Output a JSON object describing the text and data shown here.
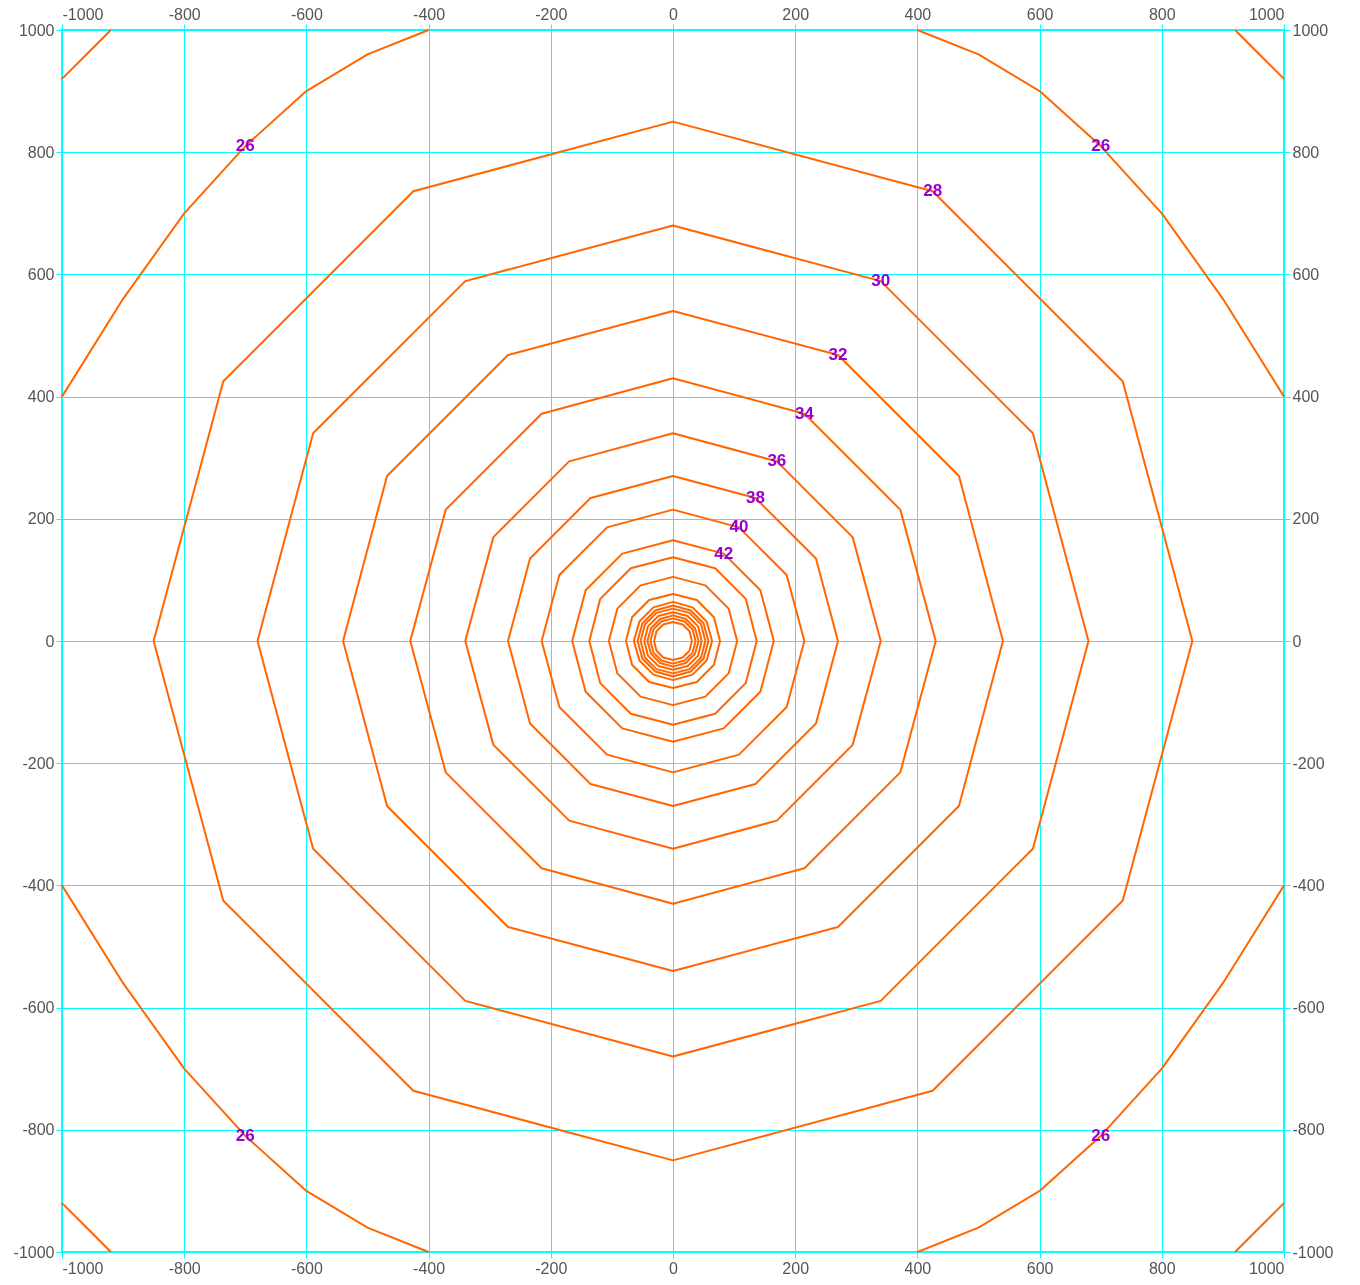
{
  "chart_data": {
    "type": "line",
    "xlim": [
      -1000,
      1000
    ],
    "ylim": [
      -1000,
      1000
    ],
    "x2lim": [
      -1000,
      1000
    ],
    "y2lim": [
      -1000,
      1000
    ],
    "xticks": [
      -1000,
      -800,
      -600,
      -400,
      -200,
      0,
      200,
      400,
      600,
      800,
      1000
    ],
    "yticks": [
      -1000,
      -800,
      -600,
      -400,
      -200,
      0,
      200,
      400,
      600,
      800,
      1000
    ],
    "x2ticks": [
      -1000,
      -800,
      -600,
      -400,
      -200,
      0,
      200,
      400,
      600,
      800,
      1000
    ],
    "y2ticks": [
      -1000,
      -800,
      -600,
      -400,
      -200,
      0,
      200,
      400,
      600,
      800,
      1000
    ],
    "grid": true,
    "marker": "none",
    "line_style": "solid",
    "series": [
      {
        "color": "#ff6600",
        "x": [
          -1000,
          -960,
          -920
        ],
        "values": [
          920,
          960,
          1000
        ]
      },
      {
        "color": "#ff6600",
        "x": [
          920,
          960,
          1000
        ],
        "values": [
          1000,
          960,
          920
        ]
      },
      {
        "color": "#ff6600",
        "x": [
          920,
          960,
          1000
        ],
        "values": [
          -1000,
          -960,
          -920
        ]
      },
      {
        "color": "#ff6600",
        "x": [
          -1000,
          -960,
          -920
        ],
        "values": [
          -920,
          -960,
          -1000
        ]
      },
      {
        "name": "26",
        "color": "#ff6600",
        "x": [
          -1000,
          -900,
          -800,
          -700,
          -600,
          -500,
          -400
        ],
        "values": [
          400,
          560,
          700,
          810,
          900,
          960,
          1000
        ]
      },
      {
        "name": "26",
        "color": "#ff6600",
        "x": [
          400,
          500,
          600,
          700,
          800,
          900,
          1000
        ],
        "values": [
          1000,
          960,
          900,
          810,
          700,
          560,
          400
        ]
      },
      {
        "name": "26",
        "color": "#ff6600",
        "x": [
          400,
          500,
          600,
          700,
          800,
          900,
          1000
        ],
        "values": [
          -1000,
          -960,
          -900,
          -810,
          -700,
          -560,
          -400
        ]
      },
      {
        "name": "26",
        "color": "#ff6600",
        "x": [
          -1000,
          -900,
          -800,
          -700,
          -600,
          -500,
          -400
        ],
        "values": [
          -400,
          -560,
          -700,
          -810,
          -900,
          -960,
          -1000
        ]
      },
      {
        "name": "28",
        "color": "#ff6600",
        "x": [
          850,
          736,
          425,
          0,
          -425,
          -736,
          -850
        ],
        "values": [
          0,
          425,
          736,
          850,
          736,
          425,
          0
        ]
      },
      {
        "color": "#ff6600",
        "x": [
          -850,
          -736,
          -425,
          0,
          425,
          736,
          850
        ],
        "values": [
          0,
          -425,
          -736,
          -850,
          -736,
          -425,
          0
        ]
      },
      {
        "name": "30",
        "color": "#ff6600",
        "x": [
          680,
          589,
          340,
          0,
          -340,
          -589,
          -680
        ],
        "values": [
          0,
          340,
          589,
          680,
          589,
          340,
          0
        ]
      },
      {
        "color": "#ff6600",
        "x": [
          -680,
          -589,
          -340,
          0,
          340,
          589,
          680
        ],
        "values": [
          0,
          -340,
          -589,
          -680,
          -589,
          -340,
          0
        ]
      },
      {
        "name": "32",
        "color": "#ff6600",
        "x": [
          540,
          468,
          270,
          0,
          -270,
          -468,
          -540
        ],
        "values": [
          0,
          270,
          468,
          540,
          468,
          270,
          0
        ]
      },
      {
        "color": "#ff6600",
        "x": [
          -540,
          -468,
          -270,
          0,
          270,
          468,
          540
        ],
        "values": [
          0,
          -270,
          -468,
          -540,
          -468,
          -270,
          0
        ]
      },
      {
        "name": "34",
        "color": "#ff6600",
        "x": [
          430,
          372,
          215,
          0,
          -215,
          -372,
          -430
        ],
        "values": [
          0,
          215,
          372,
          430,
          372,
          215,
          0
        ]
      },
      {
        "color": "#ff6600",
        "x": [
          -430,
          -372,
          -215,
          0,
          215,
          372,
          430
        ],
        "values": [
          0,
          -215,
          -372,
          -430,
          -372,
          -215,
          0
        ]
      },
      {
        "name": "36",
        "color": "#ff6600",
        "x": [
          340,
          294,
          170,
          0,
          -170,
          -294,
          -340
        ],
        "values": [
          0,
          170,
          294,
          340,
          294,
          170,
          0
        ]
      },
      {
        "color": "#ff6600",
        "x": [
          -340,
          -294,
          -170,
          0,
          170,
          294,
          340
        ],
        "values": [
          0,
          -170,
          -294,
          -340,
          -294,
          -170,
          0
        ]
      },
      {
        "name": "38",
        "color": "#ff6600",
        "x": [
          270,
          234,
          135,
          0,
          -135,
          -234,
          -270
        ],
        "values": [
          0,
          135,
          234,
          270,
          234,
          135,
          0
        ]
      },
      {
        "color": "#ff6600",
        "x": [
          -270,
          -234,
          -135,
          0,
          135,
          234,
          270
        ],
        "values": [
          0,
          -135,
          -234,
          -270,
          -234,
          -135,
          0
        ]
      },
      {
        "name": "40",
        "color": "#ff6600",
        "x": [
          215,
          186,
          108,
          0,
          -108,
          -186,
          -215
        ],
        "values": [
          0,
          108,
          186,
          215,
          186,
          108,
          0
        ]
      },
      {
        "color": "#ff6600",
        "x": [
          -215,
          -186,
          -108,
          0,
          108,
          186,
          215
        ],
        "values": [
          0,
          -108,
          -186,
          -215,
          -186,
          -108,
          0
        ]
      },
      {
        "name": "42",
        "color": "#ff6600",
        "x": [
          165,
          143,
          83,
          0,
          -83,
          -143,
          -165
        ],
        "values": [
          0,
          83,
          143,
          165,
          143,
          83,
          0
        ]
      },
      {
        "color": "#ff6600",
        "x": [
          -165,
          -143,
          -83,
          0,
          83,
          143,
          165
        ],
        "values": [
          0,
          -83,
          -143,
          -165,
          -143,
          -83,
          0
        ]
      },
      {
        "color": "#ff6600",
        "x": [
          137,
          119,
          69,
          0,
          -69,
          -119,
          -137
        ],
        "values": [
          0,
          69,
          119,
          137,
          119,
          69,
          0
        ]
      },
      {
        "color": "#ff6600",
        "x": [
          -137,
          -119,
          -69,
          0,
          69,
          119,
          137
        ],
        "values": [
          0,
          -69,
          -119,
          -137,
          -119,
          -69,
          0
        ]
      },
      {
        "color": "#ff6600",
        "x": [
          105,
          91,
          53,
          0,
          -53,
          -91,
          -105
        ],
        "values": [
          0,
          53,
          91,
          105,
          91,
          53,
          0
        ]
      },
      {
        "color": "#ff6600",
        "x": [
          -105,
          -91,
          -53,
          0,
          53,
          91,
          105
        ],
        "values": [
          0,
          -53,
          -91,
          -105,
          -91,
          -53,
          0
        ]
      },
      {
        "color": "#ff6600",
        "x": [
          77,
          67,
          39,
          0,
          -39,
          -67,
          -77
        ],
        "values": [
          0,
          39,
          67,
          77,
          67,
          39,
          0
        ]
      },
      {
        "color": "#ff6600",
        "x": [
          -77,
          -67,
          -39,
          0,
          39,
          67,
          77
        ],
        "values": [
          0,
          -39,
          -67,
          -77,
          -67,
          -39,
          0
        ]
      },
      {
        "color": "#ff6600",
        "x": [
          64,
          55,
          32,
          0,
          -32,
          -55,
          -64
        ],
        "values": [
          0,
          32,
          55,
          64,
          55,
          32,
          0
        ]
      },
      {
        "color": "#ff6600",
        "x": [
          -64,
          -55,
          -32,
          0,
          32,
          55,
          64
        ],
        "values": [
          0,
          -32,
          -55,
          -64,
          -55,
          -32,
          0
        ]
      },
      {
        "color": "#ff6600",
        "x": [
          58,
          50,
          29,
          0,
          -29,
          -50,
          -58
        ],
        "values": [
          0,
          29,
          50,
          58,
          50,
          29,
          0
        ]
      },
      {
        "color": "#ff6600",
        "x": [
          -58,
          -50,
          -29,
          0,
          29,
          50,
          58
        ],
        "values": [
          0,
          -29,
          -50,
          -58,
          -50,
          -29,
          0
        ]
      },
      {
        "color": "#ff6600",
        "x": [
          53,
          46,
          27,
          0,
          -27,
          -46,
          -53
        ],
        "values": [
          0,
          27,
          46,
          53,
          46,
          27,
          0
        ]
      },
      {
        "color": "#ff6600",
        "x": [
          -53,
          -46,
          -27,
          0,
          27,
          46,
          53
        ],
        "values": [
          0,
          -27,
          -46,
          -53,
          -46,
          -27,
          0
        ]
      },
      {
        "color": "#ff6600",
        "x": [
          47,
          41,
          24,
          0,
          -24,
          -41,
          -47
        ],
        "values": [
          0,
          24,
          41,
          47,
          41,
          24,
          0
        ]
      },
      {
        "color": "#ff6600",
        "x": [
          -47,
          -41,
          -24,
          0,
          24,
          41,
          47
        ],
        "values": [
          0,
          -24,
          -41,
          -47,
          -41,
          -24,
          0
        ]
      },
      {
        "color": "#ff6600",
        "x": [
          42,
          36,
          21,
          0,
          -21,
          -36,
          -42
        ],
        "values": [
          0,
          21,
          36,
          42,
          36,
          21,
          0
        ]
      },
      {
        "color": "#ff6600",
        "x": [
          -42,
          -36,
          -21,
          0,
          21,
          36,
          42
        ],
        "values": [
          0,
          -21,
          -36,
          -42,
          -36,
          -21,
          0
        ]
      },
      {
        "color": "#ff6600",
        "x": [
          37,
          32,
          19,
          0,
          -19,
          -32,
          -37
        ],
        "values": [
          0,
          19,
          32,
          37,
          32,
          19,
          0
        ]
      },
      {
        "color": "#ff6600",
        "x": [
          -37,
          -32,
          -19,
          0,
          19,
          32,
          37
        ],
        "values": [
          0,
          -19,
          -32,
          -37,
          -32,
          -19,
          0
        ]
      },
      {
        "color": "#ff6600",
        "x": [
          31,
          27,
          16,
          0,
          -16,
          -27,
          -31
        ],
        "values": [
          0,
          16,
          27,
          31,
          27,
          16,
          0
        ]
      },
      {
        "color": "#ff6600",
        "x": [
          -31,
          -27,
          -16,
          0,
          16,
          27,
          31
        ],
        "values": [
          0,
          -16,
          -27,
          -31,
          -27,
          -16,
          0
        ]
      }
    ]
  }
}
